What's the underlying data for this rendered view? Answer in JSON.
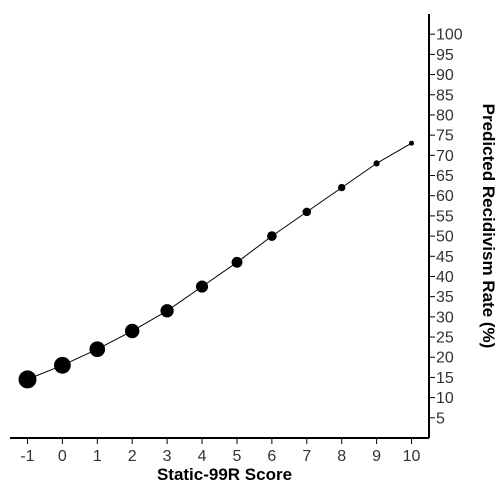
{
  "chart_data": {
    "type": "scatter",
    "title": "",
    "xlabel": "Static-99R Score",
    "ylabel": "Predicted Recidivism Rate (%)",
    "x": [
      -1,
      0,
      1,
      2,
      3,
      4,
      5,
      6,
      7,
      8,
      9,
      10
    ],
    "y": [
      14.5,
      18,
      22,
      26.5,
      31.5,
      37.5,
      43.5,
      50,
      56,
      62,
      68,
      73
    ],
    "point_size_rank": [
      12,
      11,
      10,
      9,
      8,
      7,
      6,
      5,
      4,
      3,
      2,
      1
    ],
    "connecting_line": true,
    "xlim": [
      -1.5,
      10.5
    ],
    "ylim": [
      0,
      105
    ],
    "x_ticks": [
      "-1",
      "0",
      "1",
      "2",
      "3",
      "4",
      "5",
      "6",
      "7",
      "8",
      "9",
      "10"
    ],
    "y_ticks": [
      "5",
      "10",
      "15",
      "20",
      "25",
      "30",
      "35",
      "40",
      "45",
      "50",
      "55",
      "60",
      "65",
      "70",
      "75",
      "80",
      "85",
      "90",
      "95",
      "100"
    ],
    "y_axis_side": "right",
    "grid": false,
    "point_color": "#000000",
    "line_color": "#000000"
  }
}
